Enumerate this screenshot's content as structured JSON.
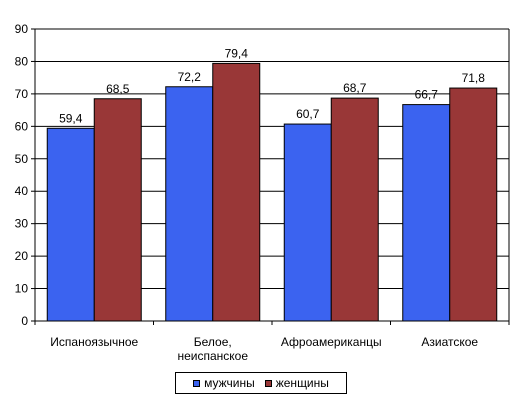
{
  "chart_data": {
    "type": "bar",
    "categories": [
      "Испаноязычное",
      "Белое, неиспанское",
      "Афроамериканцы",
      "Азиатское"
    ],
    "category_label_lines": [
      [
        "Испаноязычное"
      ],
      [
        "Белое,",
        "неиспанское"
      ],
      [
        "Афроамериканцы"
      ],
      [
        "Азиатское"
      ]
    ],
    "series": [
      {
        "name": "мужчины",
        "values": [
          59.4,
          72.2,
          60.7,
          66.7
        ],
        "labels": [
          "59,4",
          "72,2",
          "60,7",
          "66,7"
        ],
        "color": "#3b63f0"
      },
      {
        "name": "женщины",
        "values": [
          68.5,
          79.4,
          68.7,
          71.8
        ],
        "labels": [
          "68,5",
          "79,4",
          "68,7",
          "71,8"
        ],
        "color": "#993737"
      }
    ],
    "ylim": [
      0,
      90
    ],
    "yticks": [
      0,
      10,
      20,
      30,
      40,
      50,
      60,
      70,
      80,
      90
    ],
    "grid": true,
    "legend_position": "bottom"
  }
}
